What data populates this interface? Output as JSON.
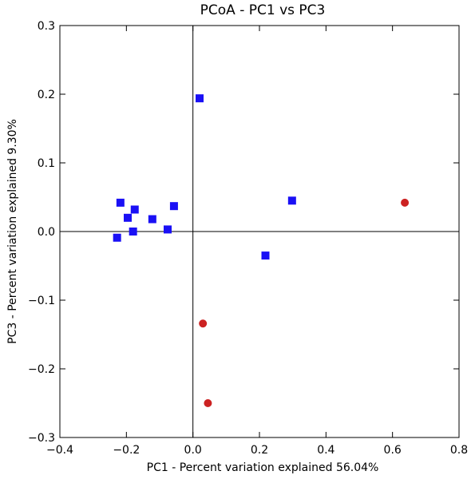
{
  "chart_data": {
    "type": "scatter",
    "title": "PCoA - PC1 vs PC3",
    "xlabel": "PC1 - Percent variation explained 56.04%",
    "ylabel": "PC3 - Percent variation explained 9.30%",
    "xlim": [
      -0.4,
      0.8
    ],
    "ylim": [
      -0.3,
      0.3
    ],
    "xticks": [
      -0.4,
      -0.2,
      0.0,
      0.2,
      0.4,
      0.6,
      0.8
    ],
    "yticks": [
      -0.3,
      -0.2,
      -0.1,
      0.0,
      0.1,
      0.2,
      0.3
    ],
    "xtick_labels": [
      "−0.4",
      "−0.2",
      "0.0",
      "0.2",
      "0.4",
      "0.6",
      "0.8"
    ],
    "ytick_labels": [
      "−0.3",
      "−0.2",
      "−0.1",
      "0.0",
      "0.1",
      "0.2",
      "0.3"
    ],
    "zero_lines": true,
    "grid": false,
    "series": [
      {
        "marker": "square",
        "color": "#1a10f5",
        "points": [
          {
            "x": 0.02,
            "y": 0.194
          },
          {
            "x": -0.218,
            "y": 0.042
          },
          {
            "x": -0.175,
            "y": 0.032
          },
          {
            "x": -0.196,
            "y": 0.02
          },
          {
            "x": -0.122,
            "y": 0.018
          },
          {
            "x": -0.057,
            "y": 0.037
          },
          {
            "x": -0.18,
            "y": 0.0
          },
          {
            "x": -0.228,
            "y": -0.009
          },
          {
            "x": -0.076,
            "y": 0.003
          },
          {
            "x": 0.298,
            "y": 0.045
          },
          {
            "x": 0.218,
            "y": -0.035
          }
        ]
      },
      {
        "marker": "circle",
        "color": "#cc2222",
        "points": [
          {
            "x": 0.637,
            "y": 0.042
          },
          {
            "x": 0.03,
            "y": -0.134
          },
          {
            "x": 0.045,
            "y": -0.25
          }
        ]
      }
    ]
  }
}
